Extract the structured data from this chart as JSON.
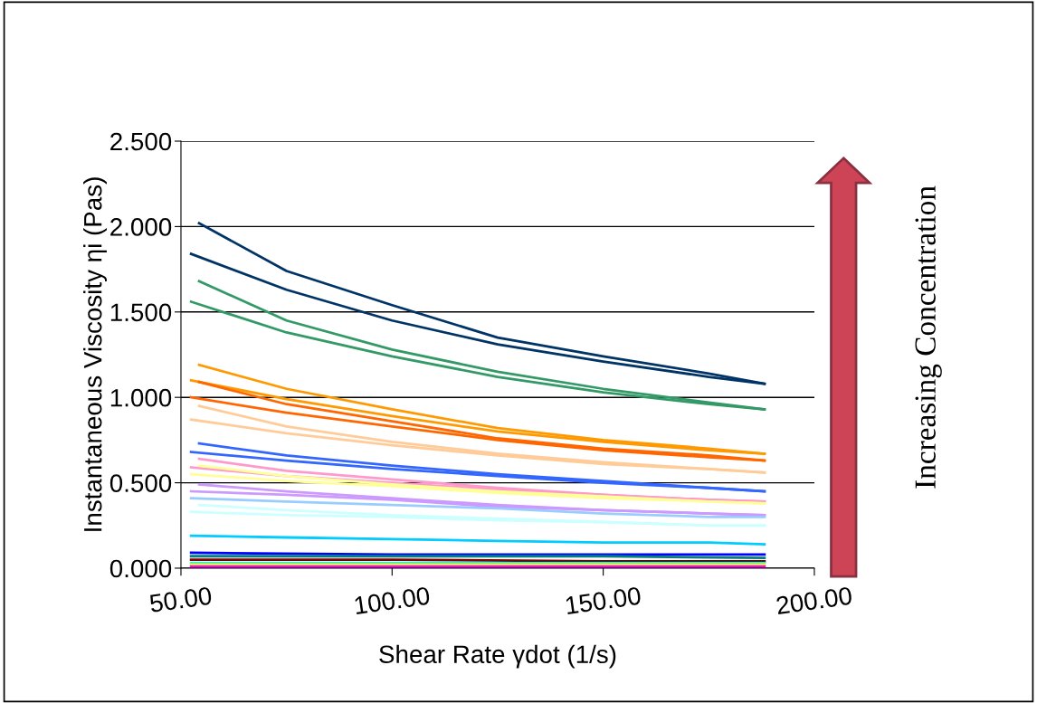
{
  "chart_data": {
    "type": "line",
    "xlabel": "Shear Rate γdot (1/s)",
    "ylabel": "Instantaneous Viscosity ηi (Pas)",
    "annotations": [
      "Increasing Concentration"
    ],
    "xlim": [
      50,
      200
    ],
    "xticks": [
      {
        "value": 50,
        "label": "50.00"
      },
      {
        "value": 100,
        "label": "100.00"
      },
      {
        "value": 150,
        "label": "150.00"
      },
      {
        "value": 200,
        "label": "200.00"
      }
    ],
    "ylim": [
      0,
      2.5
    ],
    "yticks": [
      {
        "value": 0,
        "label": "0.000"
      },
      {
        "value": 0.5,
        "label": "0.500"
      },
      {
        "value": 1,
        "label": "1.000"
      },
      {
        "value": 1.5,
        "label": "1.500"
      },
      {
        "value": 2,
        "label": "2.000"
      },
      {
        "value": 2.5,
        "label": "2.500"
      }
    ],
    "grid": "y",
    "marker": "none",
    "line_style": "solid",
    "series": [
      {
        "color": "#003366",
        "x": [
          54.3,
          75,
          100,
          125,
          150,
          175,
          188.2
        ],
        "values": [
          2.02,
          1.74,
          1.54,
          1.35,
          1.24,
          1.14,
          1.08
        ]
      },
      {
        "color": "#003366",
        "x": [
          52.4,
          75,
          100,
          125,
          150,
          175,
          188.2
        ],
        "values": [
          1.84,
          1.63,
          1.45,
          1.31,
          1.21,
          1.12,
          1.08
        ]
      },
      {
        "color": "#339966",
        "x": [
          54.3,
          75,
          100,
          125,
          150,
          175,
          188.2
        ],
        "values": [
          1.68,
          1.45,
          1.28,
          1.15,
          1.05,
          0.97,
          0.93
        ]
      },
      {
        "color": "#339966",
        "x": [
          52.4,
          75,
          100,
          125,
          150,
          175,
          188.2
        ],
        "values": [
          1.56,
          1.38,
          1.24,
          1.12,
          1.03,
          0.96,
          0.93
        ]
      },
      {
        "color": "#ff9900",
        "x": [
          54.3,
          75,
          100,
          125,
          150,
          175,
          188.2
        ],
        "values": [
          1.19,
          1.05,
          0.93,
          0.82,
          0.75,
          0.7,
          0.67
        ]
      },
      {
        "color": "#ff9900",
        "x": [
          52.4,
          75,
          100,
          125,
          150,
          175,
          188.2
        ],
        "values": [
          1.1,
          0.99,
          0.89,
          0.8,
          0.74,
          0.69,
          0.67
        ]
      },
      {
        "color": "#ff6600",
        "x": [
          54.3,
          75,
          100,
          125,
          150,
          175,
          188.2
        ],
        "values": [
          1.09,
          0.96,
          0.86,
          0.76,
          0.7,
          0.66,
          0.63
        ]
      },
      {
        "color": "#ff6600",
        "x": [
          52.4,
          75,
          100,
          125,
          150,
          175,
          188.2
        ],
        "values": [
          1.0,
          0.91,
          0.83,
          0.75,
          0.69,
          0.65,
          0.63
        ]
      },
      {
        "color": "#ffcc99",
        "x": [
          54.3,
          75,
          100,
          125,
          150,
          175,
          188.2
        ],
        "values": [
          0.95,
          0.83,
          0.74,
          0.67,
          0.62,
          0.58,
          0.56
        ]
      },
      {
        "color": "#ffcc99",
        "x": [
          52.4,
          75,
          100,
          125,
          150,
          175,
          188.2
        ],
        "values": [
          0.87,
          0.79,
          0.72,
          0.66,
          0.61,
          0.58,
          0.56
        ]
      },
      {
        "color": "#3366ff",
        "x": [
          54.3,
          75,
          100,
          125,
          150,
          175,
          188.2
        ],
        "values": [
          0.73,
          0.66,
          0.6,
          0.55,
          0.51,
          0.47,
          0.45
        ]
      },
      {
        "color": "#3366ff",
        "x": [
          52.4,
          75,
          100,
          125,
          150,
          175,
          188.2
        ],
        "values": [
          0.68,
          0.63,
          0.58,
          0.54,
          0.5,
          0.47,
          0.45
        ]
      },
      {
        "color": "#ff99cc",
        "x": [
          54.3,
          75,
          100,
          125,
          150,
          175,
          188.2
        ],
        "values": [
          0.64,
          0.57,
          0.52,
          0.47,
          0.43,
          0.4,
          0.39
        ]
      },
      {
        "color": "#ff99cc",
        "x": [
          52.4,
          75,
          100,
          125,
          150,
          175,
          188.2
        ],
        "values": [
          0.59,
          0.54,
          0.5,
          0.46,
          0.43,
          0.4,
          0.39
        ]
      },
      {
        "color": "#ffff99",
        "x": [
          54.3,
          75,
          100,
          125,
          150,
          175,
          188.2
        ],
        "values": [
          0.6,
          0.54,
          0.49,
          0.45,
          0.42,
          0.39,
          0.38
        ]
      },
      {
        "color": "#ffff99",
        "x": [
          52.4,
          75,
          100,
          125,
          150,
          175,
          188.2
        ],
        "values": [
          0.55,
          0.51,
          0.48,
          0.44,
          0.41,
          0.39,
          0.38
        ]
      },
      {
        "color": "#cc99ff",
        "x": [
          54.3,
          75,
          100,
          125,
          150,
          175,
          188.2
        ],
        "values": [
          0.49,
          0.45,
          0.41,
          0.37,
          0.34,
          0.32,
          0.31
        ]
      },
      {
        "color": "#cc99ff",
        "x": [
          52.4,
          75,
          100,
          125,
          150,
          175,
          188.2
        ],
        "values": [
          0.45,
          0.43,
          0.4,
          0.36,
          0.34,
          0.32,
          0.31
        ]
      },
      {
        "color": "#99ccff",
        "x": [
          52.4,
          75,
          100,
          125,
          150,
          175,
          188.2
        ],
        "values": [
          0.41,
          0.39,
          0.37,
          0.35,
          0.32,
          0.3,
          0.3
        ]
      },
      {
        "color": "#ccffff",
        "x": [
          54.3,
          75,
          100,
          125,
          150,
          175,
          188.2
        ],
        "values": [
          0.37,
          0.34,
          0.31,
          0.29,
          0.27,
          0.25,
          0.25
        ]
      },
      {
        "color": "#ccffff",
        "x": [
          52.4,
          75,
          100,
          125,
          150,
          175,
          188.2
        ],
        "values": [
          0.33,
          0.31,
          0.3,
          0.28,
          0.27,
          0.25,
          0.25
        ]
      },
      {
        "color": "#00ccff",
        "x": [
          52.4,
          75,
          100,
          125,
          150,
          175,
          188.2
        ],
        "values": [
          0.19,
          0.18,
          0.17,
          0.16,
          0.15,
          0.15,
          0.14
        ]
      },
      {
        "color": "#0000ff",
        "x": [
          52.4,
          100,
          150,
          188.2
        ],
        "values": [
          0.09,
          0.08,
          0.08,
          0.08
        ]
      },
      {
        "color": "#008080",
        "x": [
          52.4,
          100,
          150,
          188.2
        ],
        "values": [
          0.07,
          0.07,
          0.07,
          0.06
        ]
      },
      {
        "color": "#800000",
        "x": [
          52.4,
          100,
          150,
          188.2
        ],
        "values": [
          0.05,
          0.05,
          0.04,
          0.04
        ]
      },
      {
        "color": "#00ffff",
        "x": [
          52.4,
          100,
          150,
          188.2
        ],
        "values": [
          0.03,
          0.03,
          0.03,
          0.03
        ]
      },
      {
        "color": "#ffff00",
        "x": [
          52.4,
          100,
          150,
          188.2
        ],
        "values": [
          0.02,
          0.02,
          0.02,
          0.02
        ]
      },
      {
        "color": "#ff00ff",
        "x": [
          52.4,
          100,
          150,
          188.2
        ],
        "values": [
          0.01,
          0.01,
          0.01,
          0.01
        ]
      }
    ]
  }
}
